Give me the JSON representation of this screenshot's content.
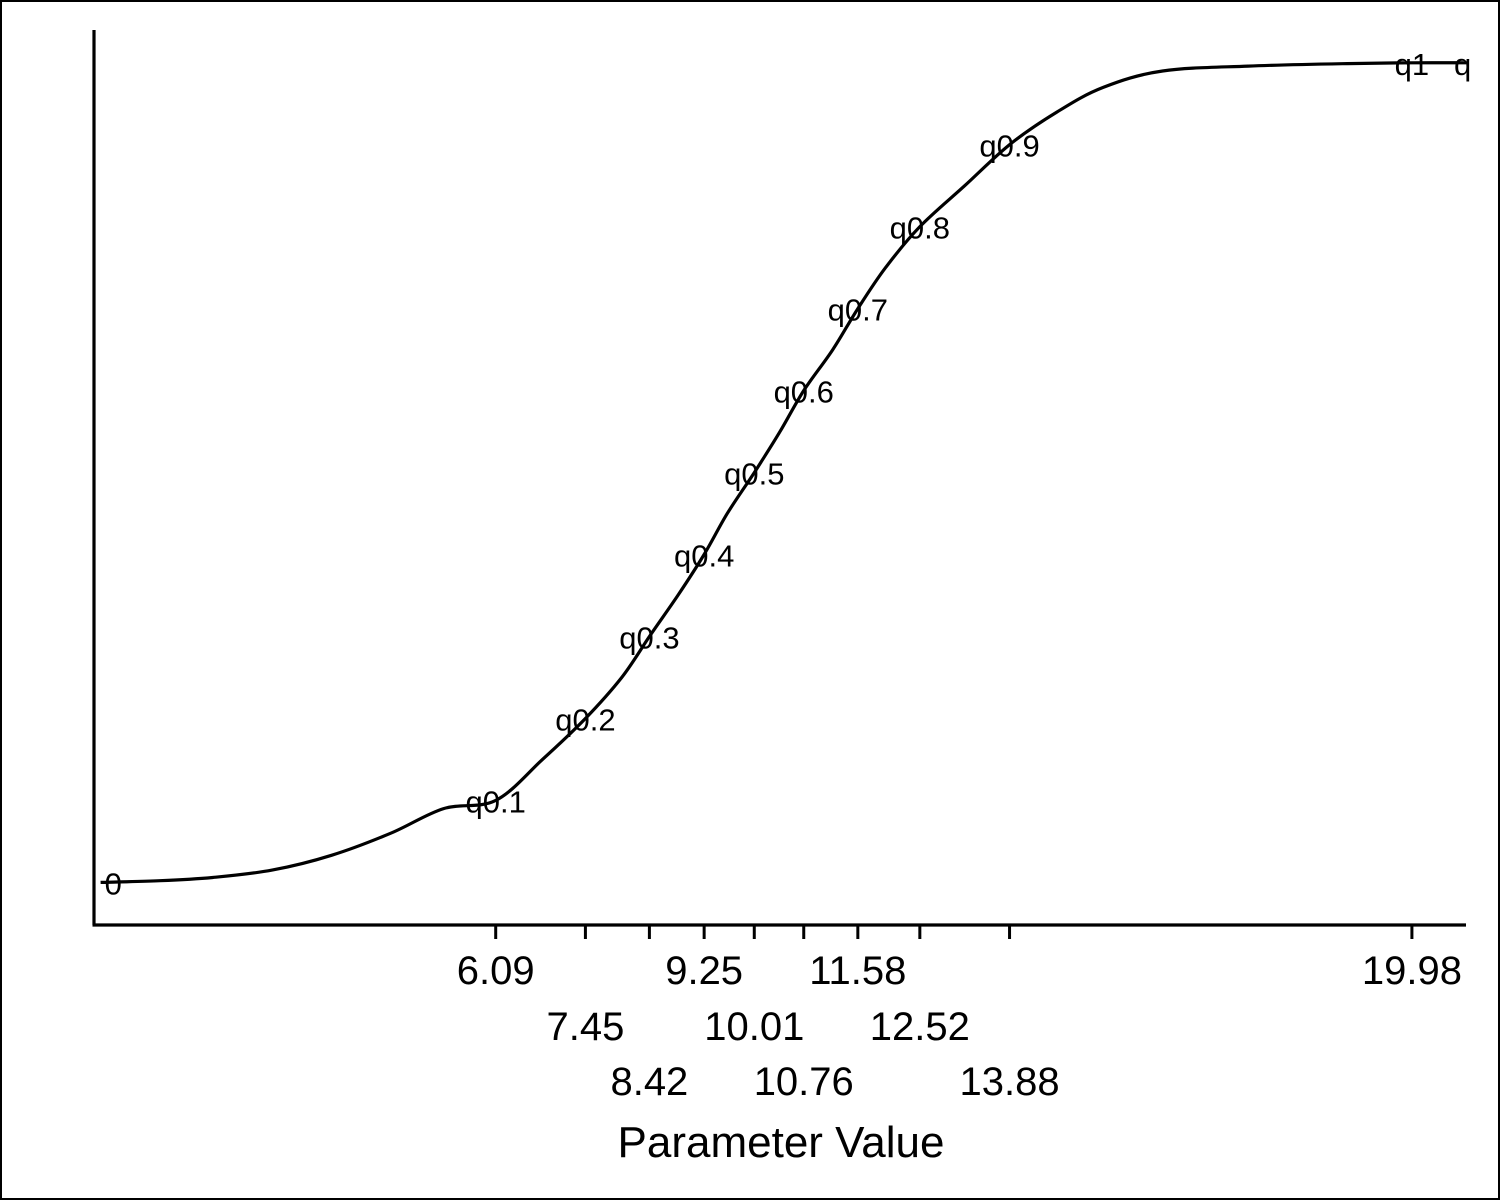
{
  "chart_data": {
    "type": "line",
    "title": "",
    "xlabel": "Parameter Value",
    "ylabel": "",
    "grid": false,
    "legend": "none",
    "xlim": [
      0,
      20.8
    ],
    "ylim": [
      -0.052,
      1.04
    ],
    "x_ticks": [
      6.09,
      7.45,
      8.42,
      9.25,
      10.01,
      10.76,
      11.58,
      12.52,
      13.88,
      19.98
    ],
    "x_tick_labels": [
      "6.09",
      "7.45",
      "8.42",
      "9.25",
      "10.01",
      "10.76",
      "11.58",
      "12.52",
      "13.88",
      "19.98"
    ],
    "curve": {
      "x": [
        0.1,
        1.0,
        1.8,
        2.7,
        3.6,
        4.5,
        5.3,
        6.09,
        6.8,
        7.45,
        8.0,
        8.42,
        8.85,
        9.25,
        9.6,
        10.01,
        10.4,
        10.76,
        11.2,
        11.58,
        12.0,
        12.52,
        13.2,
        13.88,
        14.6,
        15.3,
        16.2,
        17.5,
        19.0,
        19.98,
        20.8
      ],
      "y": [
        0.0,
        0.002,
        0.006,
        0.015,
        0.033,
        0.06,
        0.09,
        0.1,
        0.15,
        0.2,
        0.25,
        0.3,
        0.35,
        0.4,
        0.45,
        0.5,
        0.55,
        0.6,
        0.65,
        0.7,
        0.75,
        0.8,
        0.85,
        0.9,
        0.94,
        0.97,
        0.99,
        0.996,
        0.999,
        1.0,
        1.0
      ]
    },
    "quantile_labels": [
      {
        "label": "0",
        "x": 0.1,
        "y": 0.0
      },
      {
        "label": "q0.1",
        "x": 6.09,
        "y": 0.1
      },
      {
        "label": "q0.2",
        "x": 7.45,
        "y": 0.2
      },
      {
        "label": "q0.3",
        "x": 8.42,
        "y": 0.3
      },
      {
        "label": "q0.4",
        "x": 9.25,
        "y": 0.4
      },
      {
        "label": "q0.5",
        "x": 10.01,
        "y": 0.5
      },
      {
        "label": "q0.6",
        "x": 10.76,
        "y": 0.6
      },
      {
        "label": "q0.7",
        "x": 11.58,
        "y": 0.7
      },
      {
        "label": "q0.8",
        "x": 12.52,
        "y": 0.8
      },
      {
        "label": "q0.9",
        "x": 13.88,
        "y": 0.9
      },
      {
        "label": "q1",
        "x": 19.98,
        "y": 1.0
      },
      {
        "label": "q",
        "x": 20.8,
        "y": 1.0
      }
    ]
  }
}
